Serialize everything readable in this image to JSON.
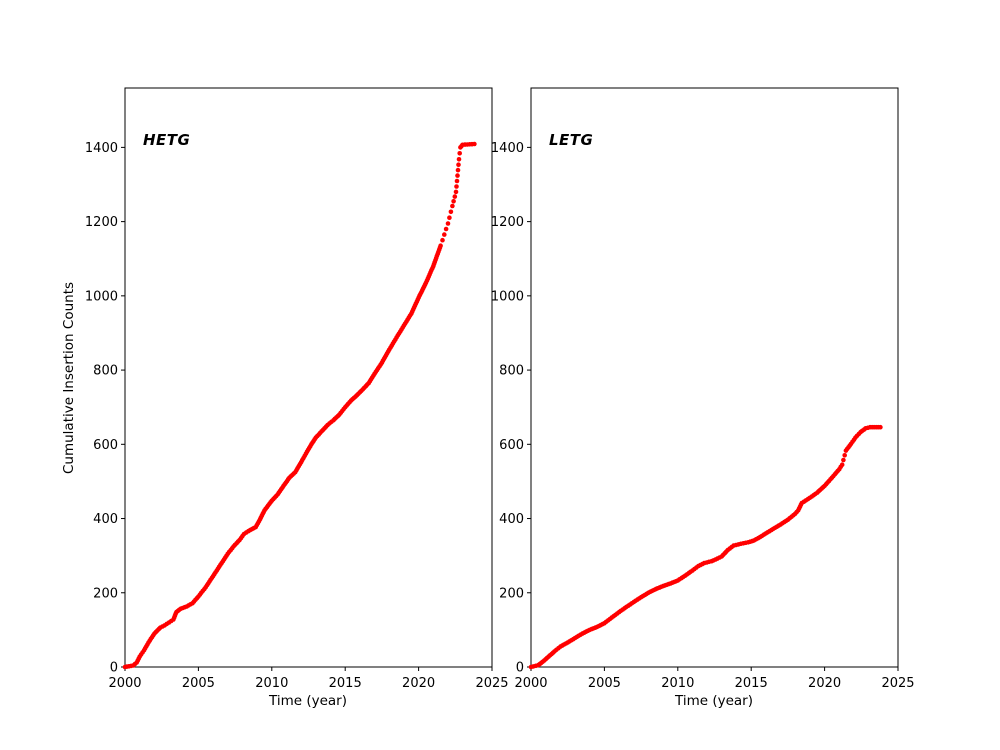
{
  "figure": {
    "background": "#ffffff"
  },
  "chart_data": {
    "type": "scatter",
    "marker_color": "#ff0000",
    "grid": false,
    "legend": "none",
    "ylabel": "Cumulative Insertion Counts",
    "panels": [
      {
        "label": "HETG",
        "xlabel": "Time (year)",
        "xlim": [
          2000,
          2025
        ],
        "ylim": [
          0,
          1560
        ],
        "xticks": [
          2000,
          2005,
          2010,
          2015,
          2020,
          2025
        ],
        "yticks": [
          0,
          200,
          400,
          600,
          800,
          1000,
          1200,
          1400
        ],
        "final_count": 1409,
        "points": [
          [
            2000.0,
            0
          ],
          [
            2000.55,
            4
          ],
          [
            2000.8,
            12
          ],
          [
            2001.0,
            28
          ],
          [
            2001.3,
            45
          ],
          [
            2001.6,
            66
          ],
          [
            2002.0,
            90
          ],
          [
            2002.4,
            106
          ],
          [
            2002.7,
            112
          ],
          [
            2003.0,
            120
          ],
          [
            2003.3,
            128
          ],
          [
            2003.5,
            148
          ],
          [
            2003.8,
            157
          ],
          [
            2004.2,
            163
          ],
          [
            2004.6,
            172
          ],
          [
            2005.0,
            190
          ],
          [
            2005.5,
            215
          ],
          [
            2006.0,
            245
          ],
          [
            2006.5,
            275
          ],
          [
            2007.0,
            305
          ],
          [
            2007.4,
            325
          ],
          [
            2007.8,
            342
          ],
          [
            2008.1,
            358
          ],
          [
            2008.4,
            366
          ],
          [
            2008.9,
            377
          ],
          [
            2009.2,
            398
          ],
          [
            2009.5,
            422
          ],
          [
            2010.0,
            448
          ],
          [
            2010.4,
            465
          ],
          [
            2010.8,
            488
          ],
          [
            2011.2,
            510
          ],
          [
            2011.6,
            525
          ],
          [
            2012.0,
            552
          ],
          [
            2012.4,
            580
          ],
          [
            2012.7,
            600
          ],
          [
            2013.0,
            618
          ],
          [
            2013.4,
            635
          ],
          [
            2013.8,
            652
          ],
          [
            2014.2,
            665
          ],
          [
            2014.6,
            680
          ],
          [
            2015.0,
            700
          ],
          [
            2015.4,
            718
          ],
          [
            2015.8,
            732
          ],
          [
            2016.2,
            748
          ],
          [
            2016.6,
            765
          ],
          [
            2017.0,
            790
          ],
          [
            2017.5,
            820
          ],
          [
            2018.0,
            855
          ],
          [
            2018.5,
            888
          ],
          [
            2019.0,
            920
          ],
          [
            2019.5,
            952
          ],
          [
            2020.0,
            995
          ],
          [
            2020.5,
            1035
          ],
          [
            2021.0,
            1080
          ],
          [
            2021.5,
            1135
          ],
          [
            2022.0,
            1195
          ],
          [
            2022.3,
            1242
          ],
          [
            2022.55,
            1280
          ],
          [
            2022.75,
            1368
          ],
          [
            2022.85,
            1400
          ],
          [
            2023.0,
            1407
          ],
          [
            2023.8,
            1409
          ]
        ]
      },
      {
        "label": "LETG",
        "xlabel": "Time (year)",
        "xlim": [
          2000,
          2025
        ],
        "ylim": [
          0,
          1560
        ],
        "xticks": [
          2000,
          2005,
          2010,
          2015,
          2020,
          2025
        ],
        "yticks": [
          0,
          200,
          400,
          600,
          800,
          1000,
          1200,
          1400
        ],
        "final_count": 646,
        "points": [
          [
            2000.0,
            0
          ],
          [
            2000.5,
            5
          ],
          [
            2000.8,
            14
          ],
          [
            2001.2,
            28
          ],
          [
            2001.6,
            42
          ],
          [
            2002.0,
            55
          ],
          [
            2002.5,
            66
          ],
          [
            2003.0,
            78
          ],
          [
            2003.5,
            90
          ],
          [
            2004.0,
            100
          ],
          [
            2004.5,
            108
          ],
          [
            2005.0,
            118
          ],
          [
            2005.5,
            133
          ],
          [
            2006.0,
            148
          ],
          [
            2006.5,
            162
          ],
          [
            2007.0,
            175
          ],
          [
            2007.5,
            188
          ],
          [
            2008.0,
            200
          ],
          [
            2008.5,
            210
          ],
          [
            2009.0,
            218
          ],
          [
            2009.5,
            225
          ],
          [
            2010.0,
            233
          ],
          [
            2010.5,
            246
          ],
          [
            2011.0,
            260
          ],
          [
            2011.4,
            272
          ],
          [
            2011.8,
            280
          ],
          [
            2012.3,
            285
          ],
          [
            2012.7,
            292
          ],
          [
            2013.0,
            298
          ],
          [
            2013.4,
            315
          ],
          [
            2013.8,
            327
          ],
          [
            2014.3,
            332
          ],
          [
            2014.8,
            336
          ],
          [
            2015.2,
            341
          ],
          [
            2015.6,
            350
          ],
          [
            2016.0,
            360
          ],
          [
            2016.5,
            372
          ],
          [
            2017.0,
            384
          ],
          [
            2017.5,
            397
          ],
          [
            2018.0,
            413
          ],
          [
            2018.2,
            422
          ],
          [
            2018.45,
            442
          ],
          [
            2019.0,
            456
          ],
          [
            2019.5,
            470
          ],
          [
            2020.0,
            488
          ],
          [
            2020.5,
            510
          ],
          [
            2021.0,
            533
          ],
          [
            2021.2,
            545
          ],
          [
            2021.45,
            583
          ],
          [
            2021.8,
            601
          ],
          [
            2022.1,
            618
          ],
          [
            2022.45,
            633
          ],
          [
            2022.8,
            643
          ],
          [
            2023.1,
            646
          ],
          [
            2023.8,
            646
          ]
        ]
      }
    ]
  }
}
